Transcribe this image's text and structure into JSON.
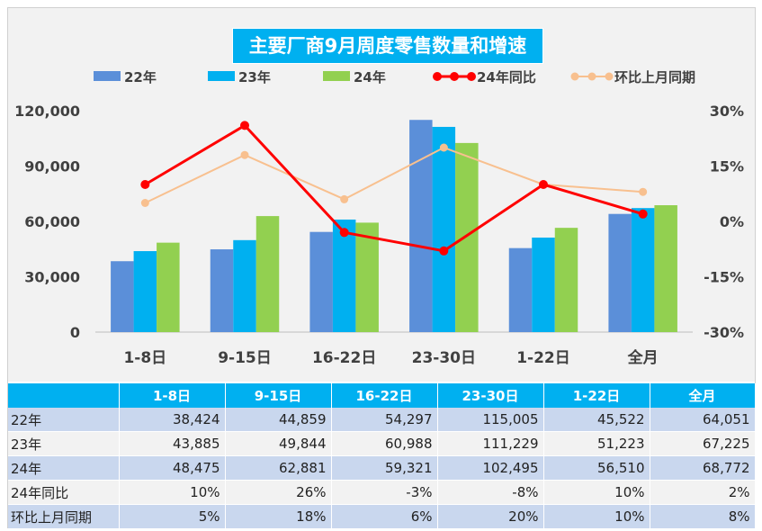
{
  "chart_data": {
    "type": "bar+line",
    "title": "主要厂商9月周度零售数量和增速",
    "categories": [
      "1-8日",
      "9-15日",
      "16-22日",
      "23-30日",
      "1-22日",
      "全月"
    ],
    "series": [
      {
        "name": "22年",
        "type": "bar",
        "axis": "left",
        "color": "#5b8fd9",
        "values": [
          38424,
          44859,
          54297,
          115005,
          45522,
          64051
        ]
      },
      {
        "name": "23年",
        "type": "bar",
        "axis": "left",
        "color": "#00b0f0",
        "values": [
          43885,
          49844,
          60988,
          111229,
          51223,
          67225
        ]
      },
      {
        "name": "24年",
        "type": "bar",
        "axis": "left",
        "color": "#92d050",
        "values": [
          48475,
          62881,
          59321,
          102495,
          56510,
          68772
        ]
      },
      {
        "name": "24年同比",
        "type": "line",
        "axis": "right",
        "color": "#ff0000",
        "values": [
          10,
          26,
          -3,
          -8,
          10,
          2
        ]
      },
      {
        "name": "环比上月同期",
        "type": "line",
        "axis": "right",
        "color": "#f8c08f",
        "values": [
          5,
          18,
          6,
          20,
          10,
          8
        ]
      }
    ],
    "yleft": {
      "range": [
        0,
        120000
      ],
      "ticks": [
        "0",
        "30,000",
        "60,000",
        "90,000",
        "120,000"
      ],
      "tick_values": [
        0,
        30000,
        60000,
        90000,
        120000
      ]
    },
    "yright": {
      "range": [
        -30,
        30
      ],
      "ticks": [
        "-30%",
        "-15%",
        "0%",
        "15%",
        "30%"
      ],
      "tick_values": [
        -30,
        -15,
        0,
        15,
        30
      ]
    },
    "legend_position": "top"
  },
  "table": {
    "header": [
      "",
      "1-8日",
      "9-15日",
      "16-22日",
      "23-30日",
      "1-22日",
      "全月"
    ],
    "rows": [
      {
        "label": "22年",
        "values": [
          "38,424",
          "44,859",
          "54,297",
          "115,005",
          "45,522",
          "64,051"
        ]
      },
      {
        "label": "23年",
        "values": [
          "43,885",
          "49,844",
          "60,988",
          "111,229",
          "51,223",
          "67,225"
        ]
      },
      {
        "label": "24年",
        "values": [
          "48,475",
          "62,881",
          "59,321",
          "102,495",
          "56,510",
          "68,772"
        ]
      },
      {
        "label": "24年同比",
        "values": [
          "10%",
          "26%",
          "-3%",
          "-8%",
          "10%",
          "2%"
        ]
      },
      {
        "label": "环比上月同期",
        "values": [
          "5%",
          "18%",
          "6%",
          "20%",
          "10%",
          "8%"
        ]
      }
    ]
  }
}
